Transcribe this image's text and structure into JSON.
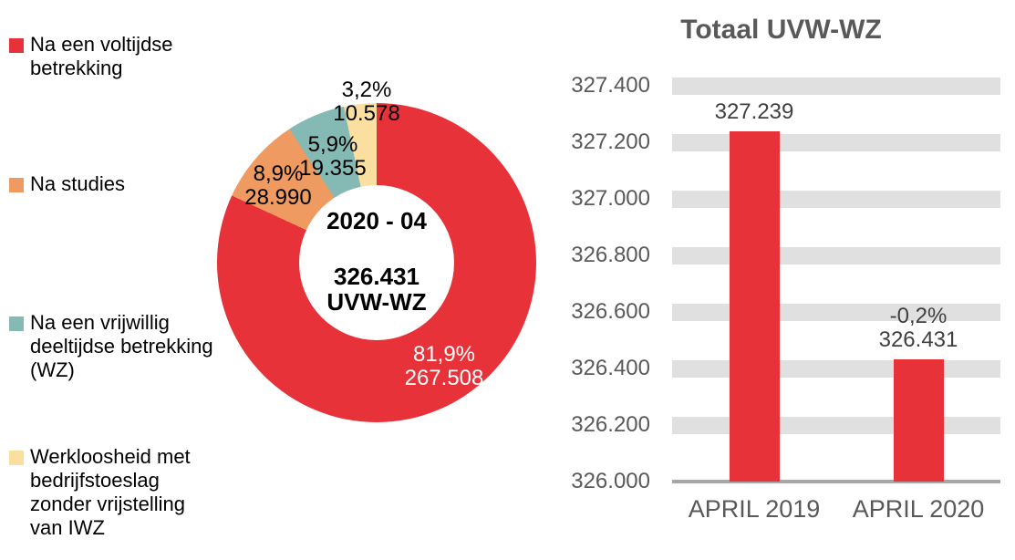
{
  "colors": {
    "background": "#FFFFFF",
    "black_text": "#000000",
    "axis_text": "#595959",
    "title_text": "#595959",
    "value_text": "#404040"
  },
  "legend": {
    "items": [
      {
        "label": "Na een voltijdse betrekking",
        "color": "#E8323A"
      },
      {
        "label": "Na studies",
        "color": "#EE9A60"
      },
      {
        "label": "Na een vrijwillig deeltijdse betrekking (WZ)",
        "color": "#85B9B4"
      },
      {
        "label": "Werkloosheid met bedrijfstoeslag zonder vrijstelling van IWZ",
        "color": "#FADFA1"
      }
    ]
  },
  "chart_data": [
    {
      "type": "pie",
      "subtype": "donut",
      "center": {
        "period": "2020 - 04",
        "total": "326.431",
        "unit": "UVW-WZ"
      },
      "slices": [
        {
          "name": "Na een voltijdse betrekking",
          "percent": 81.9,
          "value": 267508,
          "percent_label": "81,9%",
          "value_label": "267.508",
          "color": "#E8323A",
          "label_color": "#FFFFFF"
        },
        {
          "name": "Na studies",
          "percent": 8.9,
          "value": 28990,
          "percent_label": "8,9%",
          "value_label": "28.990",
          "color": "#EE9A60",
          "label_color": "#000000"
        },
        {
          "name": "Na een vrijwillig deeltijdse betrekking (WZ)",
          "percent": 5.9,
          "value": 19355,
          "percent_label": "5,9%",
          "value_label": "19.355",
          "color": "#85B9B4",
          "label_color": "#000000"
        },
        {
          "name": "Werkloosheid met bedrijfstoeslag zonder vrijstelling van IWZ",
          "percent": 3.2,
          "value": 10578,
          "percent_label": "3,2%",
          "value_label": "10.578",
          "color": "#FADFA1",
          "label_color": "#000000"
        }
      ]
    },
    {
      "type": "bar",
      "title": "Totaal UVW-WZ",
      "categories": [
        "APRIL 2019",
        "APRIL 2020"
      ],
      "values": [
        327239,
        326431
      ],
      "value_labels": [
        "327.239",
        "326.431"
      ],
      "annotations": [
        null,
        "-0,2%"
      ],
      "ylim": [
        326000,
        327400
      ],
      "ytick_interval": 200,
      "yticks": [
        327400,
        327200,
        327000,
        326800,
        326600,
        326400,
        326200,
        326000
      ],
      "ytick_labels": [
        "327.400",
        "327.200",
        "327.000",
        "326.800",
        "326.600",
        "326.400",
        "326.200",
        "326.000"
      ],
      "bar_color": "#E8323A",
      "gridline_color": "#E0E0E0",
      "axis_line_color": "#A6A6A6",
      "grid": "horizontal-bands",
      "legend_position": "none"
    }
  ]
}
